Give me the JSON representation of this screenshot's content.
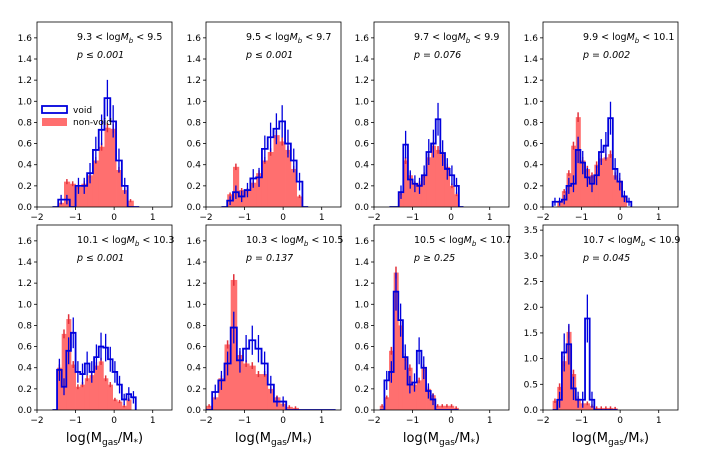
{
  "figure": {
    "xlabel_text": "log(M",
    "xlabel_sub": "gas",
    "xlabel_tail": "/M",
    "xlabel_star": "*",
    "xlabel_close": ")",
    "legend": {
      "void": "void",
      "nonvoid": "non-void"
    },
    "colors": {
      "void": "#0000dd",
      "nonvoid": "#ff6f6f",
      "nonvoid_err": "#e0303a"
    }
  },
  "chart_data": [
    {
      "type": "bar",
      "title": "9.3 < logM_b < 9.5",
      "mass_range": [
        "9.3",
        "9.5"
      ],
      "pvalue": "p ≤ 0.001",
      "xlim": [
        -2,
        1.5
      ],
      "ylim": [
        0,
        1.75
      ],
      "yticks": [
        "0.0",
        "0.2",
        "0.4",
        "0.6",
        "0.8",
        "1.0",
        "1.2",
        "1.4",
        "1.6"
      ],
      "xticks": [
        "-2",
        "-1",
        "0",
        "1"
      ],
      "show_xlabel": false,
      "legend": true,
      "bin_start": -1.6,
      "bin_width": 0.15,
      "nonvoid": [
        0,
        0.04,
        0.24,
        0.22,
        0.19,
        0.22,
        0.3,
        0.44,
        0.57,
        0.75,
        0.74,
        0.35,
        0.16,
        0.06,
        0
      ],
      "void": [
        0,
        0.07,
        0.07,
        0,
        0.2,
        0.2,
        0.32,
        0.54,
        0.73,
        1.03,
        0.81,
        0.44,
        0.2,
        0,
        0
      ]
    },
    {
      "type": "bar",
      "title": "9.5 < logM_b < 9.7",
      "mass_range": [
        "9.5",
        "9.7"
      ],
      "pvalue": "p ≤ 0.001",
      "xlim": [
        -2,
        1.5
      ],
      "ylim": [
        0,
        1.75
      ],
      "yticks": [
        "0.0",
        "0.2",
        "0.4",
        "0.6",
        "0.8",
        "1.0",
        "1.2",
        "1.4",
        "1.6"
      ],
      "xticks": [
        "-2",
        "-1",
        "0",
        "1"
      ],
      "show_xlabel": false,
      "legend": false,
      "bin_start": -1.6,
      "bin_width": 0.15,
      "nonvoid": [
        0,
        0.12,
        0.38,
        0.16,
        0.16,
        0.23,
        0.32,
        0.44,
        0.52,
        0.68,
        0.62,
        0.54,
        0.36,
        0.1,
        0
      ],
      "void": [
        0,
        0.06,
        0.14,
        0.1,
        0.16,
        0.27,
        0.28,
        0.55,
        0.66,
        0.74,
        0.81,
        0.6,
        0.44,
        0.24,
        0
      ]
    },
    {
      "type": "bar",
      "title": "9.7 < logM_b < 9.9",
      "mass_range": [
        "9.7",
        "9.9"
      ],
      "pvalue": "p = 0.076",
      "xlim": [
        -2,
        1.5
      ],
      "ylim": [
        0,
        1.75
      ],
      "yticks": [
        "0.0",
        "0.2",
        "0.4",
        "0.6",
        "0.8",
        "1.0",
        "1.2",
        "1.4",
        "1.6"
      ],
      "xticks": [
        "-2",
        "-1",
        "0",
        "1"
      ],
      "show_xlabel": false,
      "legend": false,
      "bin_start": -1.6,
      "bin_width": 0.12,
      "nonvoid": [
        0,
        0,
        0.13,
        0.44,
        0.3,
        0.22,
        0.22,
        0.3,
        0.47,
        0.58,
        0.54,
        0.5,
        0.38,
        0.2,
        0.12,
        0
      ],
      "void": [
        0,
        0,
        0.14,
        0.59,
        0.26,
        0.22,
        0.2,
        0.3,
        0.52,
        0.6,
        0.83,
        0.51,
        0.36,
        0.3,
        0.2,
        0
      ]
    },
    {
      "type": "bar",
      "title": "9.9 < logM_b < 10.1",
      "mass_range": [
        "9.9",
        "10.1"
      ],
      "pvalue": "p = 0.002",
      "xlim": [
        -2,
        1.5
      ],
      "ylim": [
        0,
        1.75
      ],
      "yticks": [
        "0.0",
        "0.2",
        "0.4",
        "0.6",
        "0.8",
        "1.0",
        "1.2",
        "1.4",
        "1.6"
      ],
      "xticks": [
        "-2",
        "-1",
        "0",
        "1"
      ],
      "show_xlabel": false,
      "legend": false,
      "bin_start": -1.75,
      "bin_width": 0.12,
      "nonvoid": [
        0,
        0.05,
        0.15,
        0.32,
        0.58,
        0.85,
        0.44,
        0.36,
        0.3,
        0.4,
        0.46,
        0.47,
        0.5,
        0.3,
        0.25,
        0.1,
        0
      ],
      "void": [
        0.05,
        0.05,
        0.07,
        0.2,
        0.22,
        0.54,
        0.42,
        0.28,
        0.22,
        0.3,
        0.52,
        0.58,
        0.84,
        0.36,
        0.24,
        0.1,
        0.05
      ]
    },
    {
      "type": "bar",
      "title": "10.1 < logM_b < 10.3",
      "mass_range": [
        "10.1",
        "10.3"
      ],
      "pvalue": "p ≤ 0.001",
      "xlim": [
        -2,
        1.5
      ],
      "ylim": [
        0,
        1.75
      ],
      "yticks": [
        "0.0",
        "0.2",
        "0.4",
        "0.6",
        "0.8",
        "1.0",
        "1.2",
        "1.4",
        "1.6"
      ],
      "xticks": [
        "-2",
        "-1",
        "0",
        "1"
      ],
      "show_xlabel": true,
      "legend": false,
      "bin_start": -1.6,
      "bin_width": 0.12,
      "nonvoid": [
        0,
        0.4,
        0.72,
        0.86,
        0.43,
        0.22,
        0.24,
        0.3,
        0.33,
        0.42,
        0.46,
        0.3,
        0.24,
        0.1,
        0.08,
        0.04,
        0.1,
        0
      ],
      "void": [
        0,
        0.38,
        0.22,
        0.56,
        0.73,
        0.36,
        0.34,
        0.44,
        0.36,
        0.5,
        0.6,
        0.59,
        0.48,
        0.36,
        0.24,
        0.1,
        0.15,
        0.12
      ]
    },
    {
      "type": "bar",
      "title": "10.3 < logM_b < 10.5",
      "mass_range": [
        "10.3",
        "10.5"
      ],
      "pvalue": "p = 0.137",
      "xlim": [
        -2,
        1.5
      ],
      "ylim": [
        0,
        1.75
      ],
      "yticks": [
        "0.0",
        "0.2",
        "0.4",
        "0.6",
        "0.8",
        "1.0",
        "1.2",
        "1.4",
        "1.6"
      ],
      "xticks": [
        "-2",
        "-1",
        "0",
        "1"
      ],
      "show_xlabel": true,
      "legend": false,
      "bin_start": -2.0,
      "bin_width": 0.16,
      "nonvoid": [
        0.04,
        0.12,
        0.3,
        0.62,
        1.23,
        0.52,
        0.44,
        0.42,
        0.34,
        0.34,
        0.2,
        0.12,
        0.06,
        0.03,
        0.02,
        0,
        0,
        0,
        0,
        0,
        0
      ],
      "void": [
        0,
        0.17,
        0.28,
        0.44,
        0.78,
        0.47,
        0.58,
        0.66,
        0.58,
        0.44,
        0.24,
        0.08,
        0.08,
        0,
        0,
        0,
        0,
        0,
        0,
        0,
        0
      ]
    },
    {
      "type": "bar",
      "title": "10.5 < logM_b < 10.7",
      "mass_range": [
        "10.5",
        "10.7"
      ],
      "pvalue": "p ≥ 0.25",
      "xlim": [
        -2,
        1.5
      ],
      "ylim": [
        0,
        1.75
      ],
      "yticks": [
        "0.0",
        "0.2",
        "0.4",
        "0.6",
        "0.8",
        "1.0",
        "1.2",
        "1.4",
        "1.6"
      ],
      "xticks": [
        "-2",
        "-1",
        "0",
        "1"
      ],
      "show_xlabel": true,
      "legend": false,
      "bin_start": -1.85,
      "bin_width": 0.12,
      "nonvoid": [
        0.04,
        0.12,
        0.56,
        1.3,
        0.8,
        0.5,
        0.4,
        0.24,
        0.28,
        0.4,
        0.2,
        0.14,
        0.04,
        0.04,
        0.04,
        0.04,
        0.02
      ],
      "void": [
        0,
        0.28,
        0.36,
        1.12,
        0.85,
        0.5,
        0.24,
        0.26,
        0.56,
        0.4,
        0.18,
        0.1,
        0,
        0,
        0,
        0,
        0
      ]
    },
    {
      "type": "bar",
      "title": "10.7 < logM_b < 10.9",
      "mass_range": [
        "10.7",
        "10.9"
      ],
      "pvalue": "p = 0.045",
      "xlim": [
        -2,
        1.5
      ],
      "ylim": [
        0,
        3.6
      ],
      "yticks": [
        "0.0",
        "0.5",
        "1.0",
        "1.5",
        "2.0",
        "2.5",
        "3.0",
        "3.5"
      ],
      "xticks": [
        "-2",
        "-1",
        "0",
        "1"
      ],
      "show_xlabel": true,
      "legend": false,
      "bin_start": -1.75,
      "bin_width": 0.12,
      "nonvoid": [
        0.18,
        0.45,
        0.95,
        1.52,
        0.7,
        0.22,
        0.13,
        0.13,
        0.08,
        0.04,
        0.04,
        0.04,
        0.04,
        0.03
      ],
      "void": [
        0,
        0.2,
        1.12,
        1.28,
        0.42,
        0.2,
        0.2,
        1.78,
        0.2,
        0,
        0,
        0,
        0,
        0
      ]
    }
  ]
}
